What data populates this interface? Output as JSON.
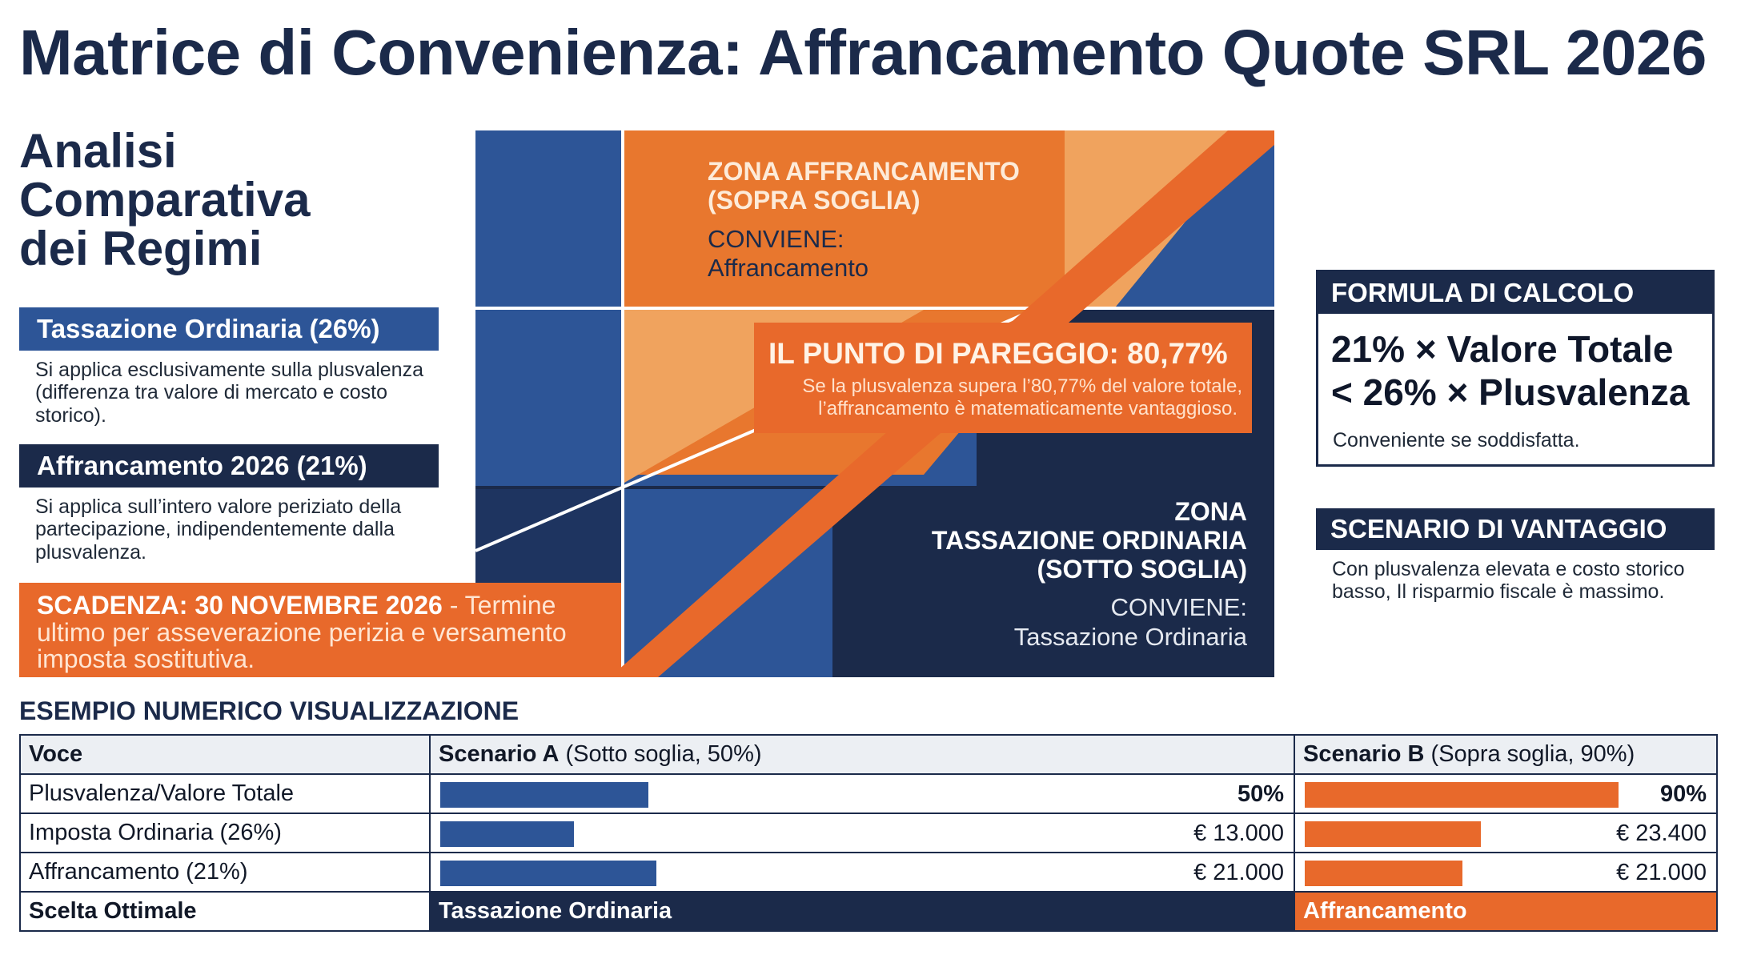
{
  "title": "Matrice di Convenienza: Affrancamento Quote SRL 2026",
  "left": {
    "subtitle": "Analisi Comparativa dei Regimi",
    "ordinaria": {
      "heading": "Tassazione Ordinaria (26%)",
      "description": "Si applica esclusivamente sulla plusvalenza (differenza tra valore di mercato e costo storico)."
    },
    "affrancamento": {
      "heading": "Affrancamento 2026 (21%)",
      "description": "Si applica sull’intero valore periziato della partecipazione, indipendentemente dalla plusvalenza."
    },
    "deadline": {
      "bold": "SCADENZA: 30 NOVEMBRE 2026",
      "rest": " - Termine ultimo per asseverazione perizia e versamento imposta sostitutiva."
    }
  },
  "matrix": {
    "zone_aff_line1": "ZONA AFFRANCAMENTO",
    "zone_aff_line2": "(SOPRA SOGLIA)",
    "zone_aff_conv1": "CONVIENE:",
    "zone_aff_conv2": "Affrancamento",
    "breakeven_title": "IL PUNTO DI PAREGGIO: 80,77%",
    "breakeven_line1": "Se la plusvalenza supera l’80,77% del valore totale,",
    "breakeven_line2": "l’affrancamento è matematicamente vantaggioso.",
    "zone_ord_line1": "ZONA",
    "zone_ord_line2": "TASSAZIONE ORDINARIA",
    "zone_ord_line3": "(SOTTO SOGLIA)",
    "zone_ord_conv1": "CONVIENE:",
    "zone_ord_conv2": "Tassazione Ordinaria"
  },
  "right": {
    "formula": {
      "heading": "FORMULA DI CALCOLO",
      "line1": "21% × Valore Totale",
      "line2": "< 26% × Plusvalenza",
      "note": "Conveniente se soddisfatta."
    },
    "scenario": {
      "heading": "SCENARIO DI VANTAGGIO",
      "description": "Con plusvalenza elevata e costo storico basso, Il risparmio fiscale è massimo."
    }
  },
  "table": {
    "title": "ESEMPIO NUMERICO VISUALIZZAZIONE",
    "header": {
      "voce": "Voce",
      "a_bold": "Scenario A",
      "a_rest": " (Sotto soglia, 50%)",
      "b_bold": "Scenario B",
      "b_rest": " (Sopra soglia, 90%)"
    },
    "rows": [
      {
        "label": "Plusvalenza/Valore Totale",
        "a_value": "50%",
        "b_value": "90%",
        "a_fill": 0.5,
        "b_fill": 0.9,
        "bold": true
      },
      {
        "label": "Imposta Ordinaria (26%)",
        "a_value": "€ 13.000",
        "b_value": "€ 23.400",
        "a_amount": 13000,
        "b_amount": 23400,
        "bold": false
      },
      {
        "label": "Affrancamento (21%)",
        "a_value": "€ 21.000",
        "b_value": "€ 21.000",
        "a_amount": 21000,
        "b_amount": 21000,
        "bold": false
      }
    ],
    "final": {
      "label": "Scelta Ottimale",
      "a": "Tassazione Ordinaria",
      "b": "Affrancamento"
    }
  },
  "colors": {
    "navy": "#1b2a4a",
    "blue": "#2d5597",
    "orange": "#e8692b",
    "light_orange": "#f0a35e"
  }
}
